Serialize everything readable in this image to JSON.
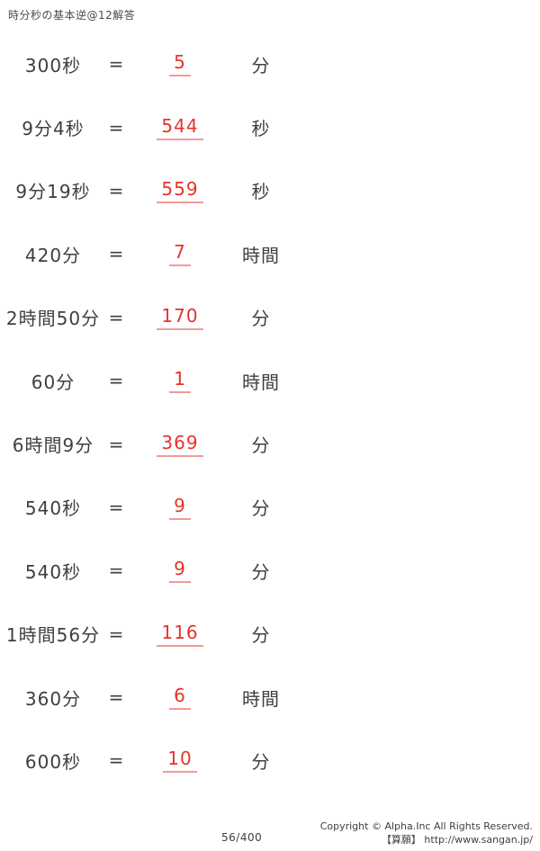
{
  "title": "時分秒の基本逆@12解答",
  "equals": "=",
  "colors": {
    "answer_red": "#e5332b",
    "underline_pink": "#f09b97",
    "ink": "#3f3f3f"
  },
  "rows": [
    {
      "expr": "300秒",
      "answer": "5",
      "unit": "分"
    },
    {
      "expr": "9分4秒",
      "answer": "544",
      "unit": "秒"
    },
    {
      "expr": "9分19秒",
      "answer": "559",
      "unit": "秒"
    },
    {
      "expr": "420分",
      "answer": "7",
      "unit": "時間"
    },
    {
      "expr": "2時間50分",
      "answer": "170",
      "unit": "分"
    },
    {
      "expr": "60分",
      "answer": "1",
      "unit": "時間"
    },
    {
      "expr": "6時間9分",
      "answer": "369",
      "unit": "分"
    },
    {
      "expr": "540秒",
      "answer": "9",
      "unit": "分"
    },
    {
      "expr": "540秒",
      "answer": "9",
      "unit": "分"
    },
    {
      "expr": "1時間56分",
      "answer": "116",
      "unit": "分"
    },
    {
      "expr": "360分",
      "answer": "6",
      "unit": "時間"
    },
    {
      "expr": "600秒",
      "answer": "10",
      "unit": "分"
    }
  ],
  "footer": {
    "page": "56/400",
    "copyright": "Copyright ©  Alpha.Inc  All  Rights  Reserved.",
    "site": "【算願】 http://www.sangan.jp/"
  }
}
